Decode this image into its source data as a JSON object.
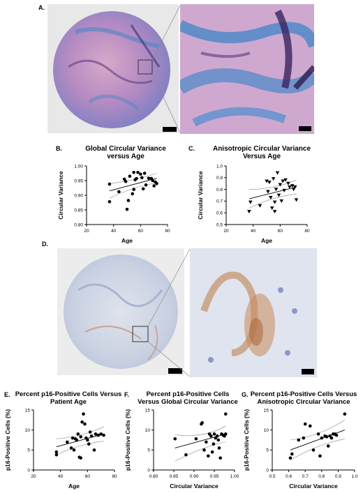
{
  "figure": {
    "panel_labels": {
      "A": "A.",
      "B": "B.",
      "C": "C.",
      "D": "D.",
      "E": "E.",
      "F": "F.",
      "G": "G."
    }
  },
  "chart_data": [
    {
      "id": "B",
      "type": "scatter",
      "title": "Global Circular Variance versus Age",
      "title_lines": [
        "Global Circular Variance",
        "versus Age"
      ],
      "xlabel": "Age",
      "ylabel": "Circular Variance",
      "xlim": [
        20,
        80
      ],
      "ylim": [
        0.8,
        1.0
      ],
      "xticks": [
        "20",
        "40",
        "60",
        "80"
      ],
      "yticks": [
        "0.80",
        "0.85",
        "0.90",
        "0.95",
        "1.00"
      ],
      "marker": "circle",
      "points": [
        [
          37,
          0.938
        ],
        [
          37,
          0.878
        ],
        [
          44,
          0.912
        ],
        [
          48,
          0.955
        ],
        [
          49,
          0.947
        ],
        [
          50,
          0.852
        ],
        [
          51,
          0.882
        ],
        [
          52,
          0.965
        ],
        [
          54,
          0.905
        ],
        [
          55,
          0.92
        ],
        [
          55,
          0.978
        ],
        [
          56,
          0.953
        ],
        [
          57,
          0.957
        ],
        [
          58,
          0.978
        ],
        [
          60,
          0.972
        ],
        [
          61,
          0.96
        ],
        [
          62,
          0.922
        ],
        [
          63,
          0.975
        ],
        [
          64,
          0.935
        ],
        [
          66,
          0.958
        ],
        [
          68,
          0.957
        ],
        [
          69,
          0.95
        ],
        [
          70,
          0.932
        ],
        [
          71,
          0.945
        ],
        [
          72,
          0.94
        ]
      ],
      "fit": [
        [
          37,
          0.915
        ],
        [
          72,
          0.958
        ]
      ],
      "ci_upper": [
        [
          37,
          0.94
        ],
        [
          55,
          0.948
        ],
        [
          72,
          0.975
        ]
      ],
      "ci_lower": [
        [
          37,
          0.89
        ],
        [
          55,
          0.93
        ],
        [
          72,
          0.942
        ]
      ]
    },
    {
      "id": "C",
      "type": "scatter",
      "title": "Anisotropic Circular Variance Versus Age",
      "title_lines": [
        "Anisotropic Circular Variance",
        "Versus Age"
      ],
      "xlabel": "Age",
      "ylabel": "Circular Variance",
      "xlim": [
        20,
        80
      ],
      "ylim": [
        0.5,
        1.0
      ],
      "xticks": [
        "20",
        "40",
        "60",
        "80"
      ],
      "yticks": [
        "0.5",
        "0.6",
        "0.7",
        "0.8",
        "0.9",
        "1.0"
      ],
      "marker": "triangle-down",
      "points": [
        [
          37,
          0.61
        ],
        [
          38,
          0.69
        ],
        [
          45,
          0.66
        ],
        [
          50,
          0.87
        ],
        [
          51,
          0.78
        ],
        [
          52,
          0.86
        ],
        [
          53,
          0.73
        ],
        [
          54,
          0.64
        ],
        [
          55,
          0.89
        ],
        [
          56,
          0.69
        ],
        [
          56,
          0.61
        ],
        [
          57,
          0.8
        ],
        [
          58,
          0.94
        ],
        [
          59,
          0.75
        ],
        [
          60,
          0.84
        ],
        [
          61,
          0.7
        ],
        [
          62,
          0.87
        ],
        [
          63,
          0.79
        ],
        [
          64,
          0.88
        ],
        [
          66,
          0.85
        ],
        [
          67,
          0.82
        ],
        [
          69,
          0.83
        ],
        [
          70,
          0.8
        ],
        [
          71,
          0.82
        ],
        [
          72,
          0.71
        ]
      ],
      "fit": [
        [
          37,
          0.72
        ],
        [
          72,
          0.82
        ]
      ],
      "ci_upper": [
        [
          37,
          0.8
        ],
        [
          55,
          0.8
        ],
        [
          72,
          0.88
        ]
      ],
      "ci_lower": [
        [
          37,
          0.64
        ],
        [
          55,
          0.74
        ],
        [
          72,
          0.76
        ]
      ]
    },
    {
      "id": "E",
      "type": "scatter",
      "title": "Percent p16-Positive Cells Versus Patient Age",
      "title_lines": [
        "Percent p16-Positive Cells Versus",
        "Patient Age"
      ],
      "xlabel": "Age",
      "ylabel": "p16-Positive Cells (%)",
      "xlim": [
        20,
        80
      ],
      "ylim": [
        0,
        15
      ],
      "xticks": [
        "20",
        "40",
        "60",
        "80"
      ],
      "yticks": [
        "0",
        "5",
        "10",
        "15"
      ],
      "marker": "circle",
      "points": [
        [
          37,
          4.5
        ],
        [
          37,
          3.8
        ],
        [
          45,
          7.0
        ],
        [
          48,
          5.5
        ],
        [
          49,
          8.0
        ],
        [
          50,
          5.0
        ],
        [
          51,
          7.8
        ],
        [
          52,
          7.5
        ],
        [
          53,
          9.0
        ],
        [
          54,
          3.2
        ],
        [
          55,
          3.0
        ],
        [
          55,
          8.3
        ],
        [
          56,
          12.0
        ],
        [
          57,
          14.0
        ],
        [
          58,
          11.5
        ],
        [
          59,
          8.0
        ],
        [
          60,
          7.5
        ],
        [
          61,
          6.5
        ],
        [
          62,
          9.5
        ],
        [
          63,
          8.5
        ],
        [
          65,
          5.0
        ],
        [
          66,
          9.0
        ],
        [
          68,
          8.7
        ],
        [
          70,
          9.0
        ],
        [
          72,
          8.7
        ]
      ],
      "fit": [
        [
          37,
          5.8
        ],
        [
          72,
          9.0
        ]
      ],
      "ci_upper": [
        [
          37,
          7.8
        ],
        [
          55,
          8.2
        ],
        [
          72,
          10.8
        ]
      ],
      "ci_lower": [
        [
          37,
          3.8
        ],
        [
          55,
          6.6
        ],
        [
          72,
          7.2
        ]
      ]
    },
    {
      "id": "F",
      "type": "scatter",
      "title": "Percent p16-Positive Cells Versus Global Circular Variance",
      "title_lines": [
        "Percent p16-Positive Cells",
        "Versus Global Circular Variance"
      ],
      "xlabel": "Circular Variance",
      "ylabel": "p16-Positive Cells (%)",
      "xlim": [
        0.8,
        1.0
      ],
      "ylim": [
        0,
        15
      ],
      "xticks": [
        "0.80",
        "0.85",
        "0.90",
        "0.95",
        "1.00"
      ],
      "yticks": [
        "0",
        "5",
        "10",
        "15"
      ],
      "marker": "circle",
      "points": [
        [
          0.853,
          7.8
        ],
        [
          0.88,
          3.8
        ],
        [
          0.905,
          7.8
        ],
        [
          0.918,
          11.5
        ],
        [
          0.92,
          11.8
        ],
        [
          0.925,
          5.0
        ],
        [
          0.93,
          7.0
        ],
        [
          0.935,
          3.5
        ],
        [
          0.938,
          9.0
        ],
        [
          0.942,
          8.5
        ],
        [
          0.945,
          4.5
        ],
        [
          0.948,
          6.5
        ],
        [
          0.95,
          9.0
        ],
        [
          0.953,
          8.0
        ],
        [
          0.957,
          8.5
        ],
        [
          0.96,
          7.5
        ],
        [
          0.962,
          5.5
        ],
        [
          0.965,
          3.0
        ],
        [
          0.968,
          9.0
        ],
        [
          0.972,
          8.7
        ],
        [
          0.975,
          8.5
        ],
        [
          0.978,
          14.0
        ],
        [
          0.978,
          9.0
        ]
      ],
      "fit": [
        [
          0.853,
          5.5
        ],
        [
          0.978,
          9.0
        ]
      ],
      "ci_upper": [
        [
          0.853,
          8.8
        ],
        [
          0.93,
          8.0
        ],
        [
          0.978,
          11.0
        ]
      ],
      "ci_lower": [
        [
          0.853,
          2.2
        ],
        [
          0.93,
          6.2
        ],
        [
          0.978,
          7.0
        ]
      ]
    },
    {
      "id": "G",
      "type": "scatter",
      "title": "Percent p16-Positive Cells Versus Anisotropic Circular Variance",
      "title_lines": [
        "Percent p16-Positive Cells Versus",
        "Anisotropic Circular Variance"
      ],
      "xlabel": "Circular Variance",
      "ylabel": "p16-Positive Cells (%)",
      "xlim": [
        0.5,
        1.0
      ],
      "ylim": [
        0,
        15
      ],
      "xticks": [
        "0.5",
        "0.6",
        "0.7",
        "0.8",
        "0.9",
        "1.0"
      ],
      "yticks": [
        "0",
        "5",
        "10",
        "15"
      ],
      "marker": "circle",
      "points": [
        [
          0.61,
          3.0
        ],
        [
          0.62,
          4.0
        ],
        [
          0.66,
          7.5
        ],
        [
          0.69,
          8.0
        ],
        [
          0.7,
          11.5
        ],
        [
          0.73,
          11.0
        ],
        [
          0.75,
          5.0
        ],
        [
          0.78,
          9.0
        ],
        [
          0.79,
          3.5
        ],
        [
          0.8,
          8.0
        ],
        [
          0.82,
          8.5
        ],
        [
          0.83,
          8.3
        ],
        [
          0.84,
          6.0
        ],
        [
          0.85,
          8.5
        ],
        [
          0.86,
          8.0
        ],
        [
          0.87,
          9.0
        ],
        [
          0.88,
          9.0
        ],
        [
          0.89,
          8.7
        ],
        [
          0.94,
          14.0
        ]
      ],
      "fit": [
        [
          0.61,
          5.0
        ],
        [
          0.94,
          10.0
        ]
      ],
      "ci_upper": [
        [
          0.61,
          7.5
        ],
        [
          0.78,
          8.3
        ],
        [
          0.94,
          12.5
        ]
      ],
      "ci_lower": [
        [
          0.61,
          2.5
        ],
        [
          0.78,
          6.5
        ],
        [
          0.94,
          7.8
        ]
      ]
    }
  ]
}
